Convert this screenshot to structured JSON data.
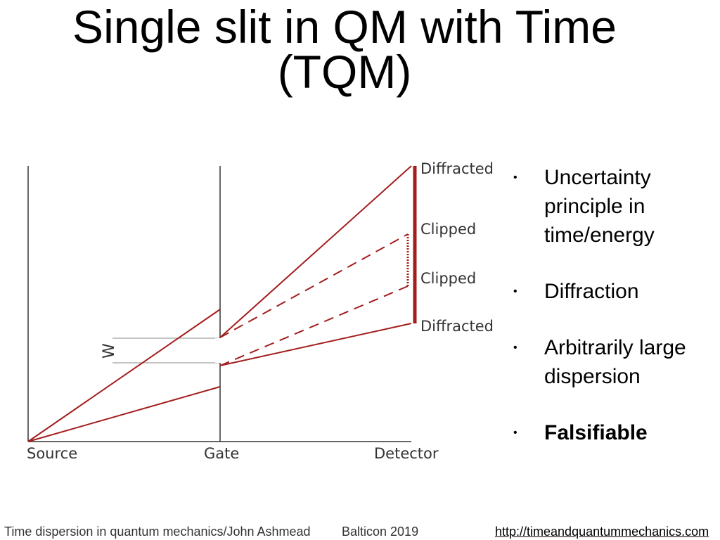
{
  "slide": {
    "title_line1": "Single slit in QM with Time",
    "title_line2": "(TQM)"
  },
  "diagram": {
    "labels": {
      "source": "Source",
      "gate": "Gate",
      "detector": "Detector",
      "width": "W",
      "diffracted_top": "Diffracted",
      "clipped_upper": "Clipped",
      "clipped_lower": "Clipped",
      "diffracted_bottom": "Diffracted"
    },
    "colors": {
      "ray": "#a31d1d",
      "axis": "#333333",
      "slit_edge": "#888888",
      "label": "#333333"
    }
  },
  "bullets": [
    {
      "text": "Uncertainty principle in time/energy",
      "bold": false
    },
    {
      "text": "Diffraction",
      "bold": false
    },
    {
      "text": "Arbitrarily large dispersion",
      "bold": false
    },
    {
      "text": "Falsifiable",
      "bold": true
    }
  ],
  "bullet_symbol": "•",
  "footer": {
    "left": "Time dispersion in quantum mechanics/John Ashmead",
    "center": "Balticon 2019",
    "right": "http://timeandquantummechanics.com"
  }
}
